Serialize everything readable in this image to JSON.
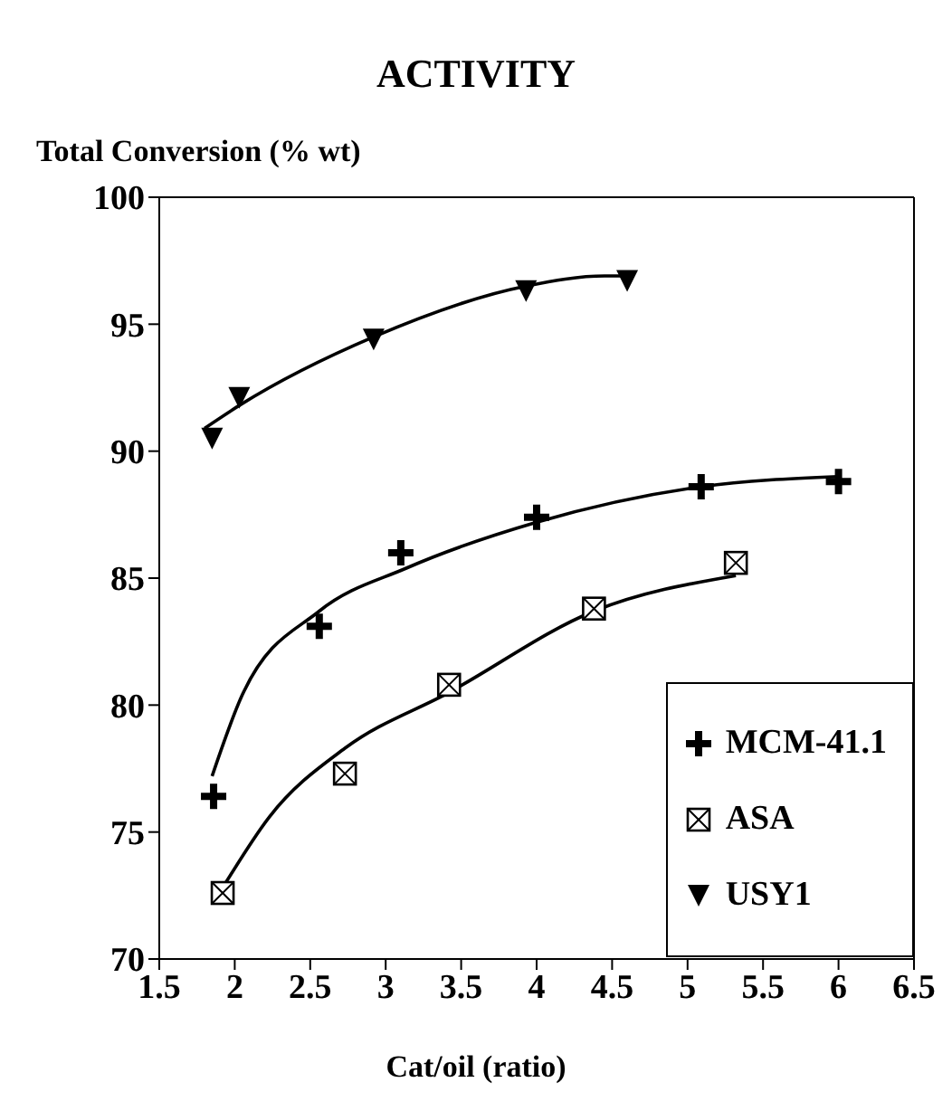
{
  "chart_data": {
    "type": "scatter",
    "title": "ACTIVITY",
    "ylabel": "Total Conversion (% wt)",
    "xlabel": "Cat/oil (ratio)",
    "xlim": [
      1.5,
      6.5
    ],
    "xticks": [
      1.5,
      2,
      2.5,
      3,
      3.5,
      4,
      4.5,
      5,
      5.5,
      6,
      6.5
    ],
    "ylim": [
      70,
      100
    ],
    "yticks": [
      70,
      75,
      80,
      85,
      90,
      95,
      100
    ],
    "legend": "bottom right",
    "series": [
      {
        "name": "MCM-41.1",
        "color": "#000000",
        "marker": "cross",
        "x": [
          1.86,
          2.56,
          3.1,
          4.0,
          5.09,
          6.0
        ],
        "values": [
          76.4,
          83.1,
          86.0,
          87.4,
          88.6,
          88.8
        ]
      },
      {
        "name": "ASA",
        "color": "#000000",
        "marker": "square",
        "x": [
          1.92,
          2.73,
          3.42,
          4.38,
          5.32
        ],
        "values": [
          72.6,
          77.3,
          80.8,
          83.8,
          85.6
        ]
      },
      {
        "name": "USY1",
        "color": "#000000",
        "marker": "triangle",
        "x": [
          1.85,
          2.03,
          2.92,
          3.93,
          4.6
        ],
        "values": [
          90.5,
          92.1,
          94.4,
          96.3,
          96.7
        ]
      },
      {
        "type": "line",
        "color": "#000000",
        "marker": "none",
        "x": [
          1.85,
          2.05,
          2.56,
          3.14,
          4.0,
          5.09,
          6.0
        ],
        "values": [
          77.2,
          80.4,
          83.7,
          85.4,
          87.2,
          88.6,
          89.0
        ]
      },
      {
        "type": "line",
        "color": "#000000",
        "marker": "none",
        "x": [
          1.94,
          2.23,
          2.73,
          3.42,
          4.38,
          5.32
        ],
        "values": [
          73.0,
          75.6,
          78.3,
          80.5,
          83.7,
          85.1
        ]
      },
      {
        "type": "line",
        "color": "#000000",
        "marker": "none",
        "x": [
          1.8,
          2.03,
          2.92,
          3.93,
          4.45,
          4.6
        ],
        "values": [
          90.9,
          91.8,
          94.5,
          96.5,
          96.9,
          96.9
        ]
      }
    ]
  }
}
